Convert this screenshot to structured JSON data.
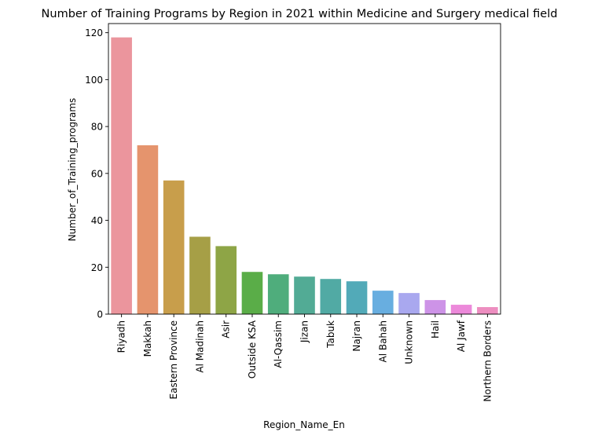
{
  "chart_data": {
    "type": "bar",
    "title": "Number of Training Programs by Region in 2021 within Medicine and Surgery medical field",
    "xlabel": "Region_Name_En",
    "ylabel": "Number_of_Training_programs",
    "categories": [
      "Riyadh",
      "Makkah",
      "Eastern Province",
      "Al Madinah",
      "Asir",
      "Outside KSA",
      "Al-Qassim",
      "Jizan",
      "Tabuk",
      "Najran",
      "Al Bahah",
      "Unknown",
      "Hail",
      "Al Jawf",
      "Northern Borders"
    ],
    "values": [
      118,
      72,
      57,
      33,
      29,
      18,
      17,
      16,
      15,
      14,
      10,
      9,
      6,
      4,
      3
    ],
    "colors": [
      "#eb959d",
      "#e5946d",
      "#c89e4b",
      "#a69f46",
      "#8ea546",
      "#5aad48",
      "#4fad7c",
      "#52ab95",
      "#51aaa4",
      "#52aab8",
      "#68aee0",
      "#a9a8ef",
      "#cd93e7",
      "#ec89da",
      "#ed8ec0"
    ],
    "yticks": [
      0,
      20,
      40,
      60,
      80,
      100,
      120
    ],
    "ylim": [
      0,
      123.9
    ],
    "grid": false,
    "legend": "none"
  }
}
